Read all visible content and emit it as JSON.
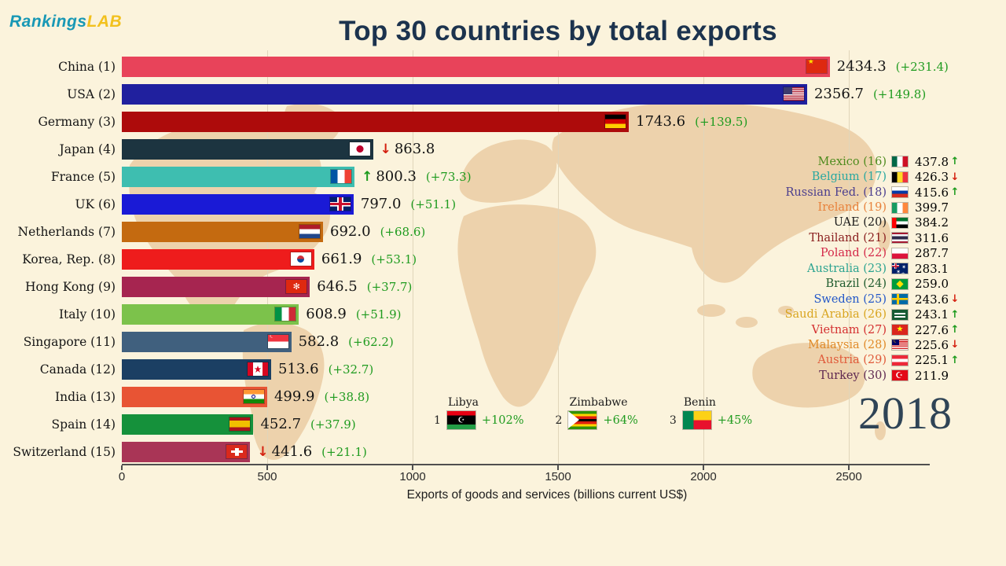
{
  "brand": {
    "rankings": "Rankings",
    "lab": "LAB"
  },
  "title": "Top 30 countries by total exports",
  "year": "2018",
  "glyphs": {
    "up": "↑",
    "down": "↓"
  },
  "colors": {
    "background": "#FBF3DC",
    "up": "#1B9A1B",
    "down": "#D42010",
    "change": "#1F9B1F"
  },
  "chart_data": {
    "type": "bar",
    "orientation": "horizontal",
    "title": "Top 30 countries by total exports",
    "xlabel": "Exports of goods and services (billions current US$)",
    "xlim": [
      0,
      2700
    ],
    "x_ticks": [
      0,
      500,
      1000,
      1500,
      2000,
      2500
    ],
    "grid": true,
    "bars": [
      {
        "label": "China (1)",
        "country": "China",
        "rank": 1,
        "value": 2434.3,
        "display": "2434.3",
        "change": "(+231.4)",
        "trend": null,
        "color": "#E8435A",
        "flag": "cn"
      },
      {
        "label": "USA (2)",
        "country": "USA",
        "rank": 2,
        "value": 2356.7,
        "display": "2356.7",
        "change": "(+149.8)",
        "trend": null,
        "color": "#20209E",
        "flag": "us"
      },
      {
        "label": "Germany (3)",
        "country": "Germany",
        "rank": 3,
        "value": 1743.6,
        "display": "1743.6",
        "change": "(+139.5)",
        "trend": null,
        "color": "#AD0B0B",
        "flag": "de"
      },
      {
        "label": "Japan (4)",
        "country": "Japan",
        "rank": 4,
        "value": 863.8,
        "display": "863.8",
        "change": null,
        "trend": "down",
        "color": "#1C3440",
        "flag": "jp"
      },
      {
        "label": "France (5)",
        "country": "France",
        "rank": 5,
        "value": 800.3,
        "display": "800.3",
        "change": "(+73.3)",
        "trend": "up",
        "color": "#3EBEB0",
        "flag": "fr"
      },
      {
        "label": "UK (6)",
        "country": "UK",
        "rank": 6,
        "value": 797.0,
        "display": "797.0",
        "change": "(+51.1)",
        "trend": null,
        "color": "#1A1AD6",
        "flag": "uk"
      },
      {
        "label": "Netherlands (7)",
        "country": "Netherlands",
        "rank": 7,
        "value": 692.0,
        "display": "692.0",
        "change": "(+68.6)",
        "trend": null,
        "color": "#C46A10",
        "flag": "nl"
      },
      {
        "label": "Korea, Rep. (8)",
        "country": "Korea Rep",
        "rank": 8,
        "value": 661.9,
        "display": "661.9",
        "change": "(+53.1)",
        "trend": null,
        "color": "#EE1C1C",
        "flag": "kr"
      },
      {
        "label": "Hong Kong (9)",
        "country": "Hong Kong",
        "rank": 9,
        "value": 646.5,
        "display": "646.5",
        "change": "(+37.7)",
        "trend": null,
        "color": "#A62550",
        "flag": "hk"
      },
      {
        "label": "Italy (10)",
        "country": "Italy",
        "rank": 10,
        "value": 608.9,
        "display": "608.9",
        "change": "(+51.9)",
        "trend": null,
        "color": "#7CC24B",
        "flag": "it"
      },
      {
        "label": "Singapore (11)",
        "country": "Singapore",
        "rank": 11,
        "value": 582.8,
        "display": "582.8",
        "change": "(+62.2)",
        "trend": null,
        "color": "#40607E",
        "flag": "sg"
      },
      {
        "label": "Canada (12)",
        "country": "Canada",
        "rank": 12,
        "value": 513.6,
        "display": "513.6",
        "change": "(+32.7)",
        "trend": null,
        "color": "#1B3F63",
        "flag": "ca"
      },
      {
        "label": "India (13)",
        "country": "India",
        "rank": 13,
        "value": 499.9,
        "display": "499.9",
        "change": "(+38.8)",
        "trend": null,
        "color": "#E85434",
        "flag": "in"
      },
      {
        "label": "Spain (14)",
        "country": "Spain",
        "rank": 14,
        "value": 452.7,
        "display": "452.7",
        "change": "(+37.9)",
        "trend": null,
        "color": "#15913B",
        "flag": "es"
      },
      {
        "label": "Switzerland (15)",
        "country": "Switzerland",
        "rank": 15,
        "value": 441.6,
        "display": "441.6",
        "change": "(+21.1)",
        "trend": "down",
        "color": "#A93556",
        "flag": "ch"
      }
    ],
    "side_list": [
      {
        "label": "Mexico (16)",
        "value": "437.8",
        "trend": "up",
        "color": "#4E8B1E",
        "flag": "mx"
      },
      {
        "label": "Belgium (17)",
        "value": "426.3",
        "trend": "down",
        "color": "#2AA8A0",
        "flag": "be"
      },
      {
        "label": "Russian Fed. (18)",
        "value": "415.6",
        "trend": "up",
        "color": "#4B3E8E",
        "flag": "ru"
      },
      {
        "label": "Ireland (19)",
        "value": "399.7",
        "trend": null,
        "color": "#E8823C",
        "flag": "ie"
      },
      {
        "label": "UAE (20)",
        "value": "384.2",
        "trend": null,
        "color": "#1A1A1A",
        "flag": "ae"
      },
      {
        "label": "Thailand (21)",
        "value": "311.6",
        "trend": null,
        "color": "#8B2020",
        "flag": "th"
      },
      {
        "label": "Poland (22)",
        "value": "287.7",
        "trend": null,
        "color": "#D42A4A",
        "flag": "pl"
      },
      {
        "label": "Australia (23)",
        "value": "283.1",
        "trend": null,
        "color": "#2BA390",
        "flag": "au"
      },
      {
        "label": "Brazil (24)",
        "value": "259.0",
        "trend": null,
        "color": "#1F5B2E",
        "flag": "br"
      },
      {
        "label": "Sweden (25)",
        "value": "243.6",
        "trend": "down",
        "color": "#2458C8",
        "flag": "se"
      },
      {
        "label": "Saudi Arabia (26)",
        "value": "243.1",
        "trend": "up",
        "color": "#D9A520",
        "flag": "sa"
      },
      {
        "label": "Vietnam (27)",
        "value": "227.6",
        "trend": "up",
        "color": "#D43030",
        "flag": "vn"
      },
      {
        "label": "Malaysia (28)",
        "value": "225.6",
        "trend": "down",
        "color": "#E08A28",
        "flag": "my"
      },
      {
        "label": "Austria (29)",
        "value": "225.1",
        "trend": "up",
        "color": "#E05A3A",
        "flag": "at"
      },
      {
        "label": "Turkey (30)",
        "value": "211.9",
        "trend": null,
        "color": "#5E2750",
        "flag": "tr"
      }
    ],
    "growers": [
      {
        "rank": "1",
        "name": "Libya",
        "pct": "+102%",
        "flag": "ly"
      },
      {
        "rank": "2",
        "name": "Zimbabwe",
        "pct": "+64%",
        "flag": "zw"
      },
      {
        "rank": "3",
        "name": "Benin",
        "pct": "+45%",
        "flag": "bj"
      }
    ]
  }
}
